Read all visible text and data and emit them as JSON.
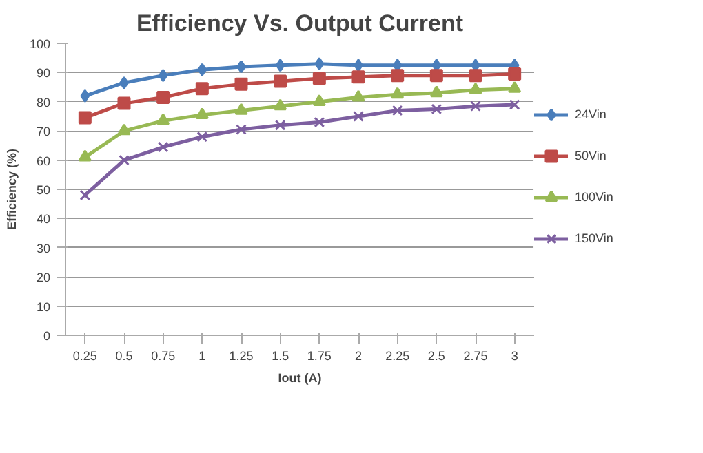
{
  "chart_data": {
    "type": "line",
    "title": "Efficiency Vs. Output Current",
    "xlabel": "Iout (A)",
    "ylabel": "Efficiency (%)",
    "categories": [
      "0.25",
      "0.5",
      "0.75",
      "1",
      "1.25",
      "1.5",
      "1.75",
      "2",
      "2.25",
      "2.5",
      "2.75",
      "3"
    ],
    "ylim": [
      0,
      100
    ],
    "yticks": [
      0,
      10,
      20,
      30,
      40,
      50,
      60,
      70,
      80,
      90,
      100
    ],
    "grid": "y",
    "legend": "right",
    "line_style": "solid",
    "series": [
      {
        "name": "24Vin",
        "color": "#4a7ebb",
        "marker": "diamond",
        "values": [
          82,
          86.5,
          89,
          91,
          92,
          92.5,
          93,
          92.5,
          92.5,
          92.5,
          92.5,
          92.5
        ]
      },
      {
        "name": "50Vin",
        "color": "#be4b48",
        "marker": "square",
        "values": [
          74.5,
          79.5,
          81.5,
          84.5,
          86,
          87,
          88,
          88.5,
          89,
          89,
          89,
          89.5
        ]
      },
      {
        "name": "100Vin",
        "color": "#98b954",
        "marker": "triangle",
        "values": [
          61,
          70,
          73.5,
          75.5,
          77,
          78.5,
          80,
          81.5,
          82.5,
          83,
          84,
          84.5
        ]
      },
      {
        "name": "150Vin",
        "color": "#7d5fa0",
        "marker": "cross",
        "values": [
          48,
          60,
          64.5,
          68,
          70.5,
          72,
          73,
          75,
          77,
          77.5,
          78.5,
          79
        ]
      }
    ]
  }
}
